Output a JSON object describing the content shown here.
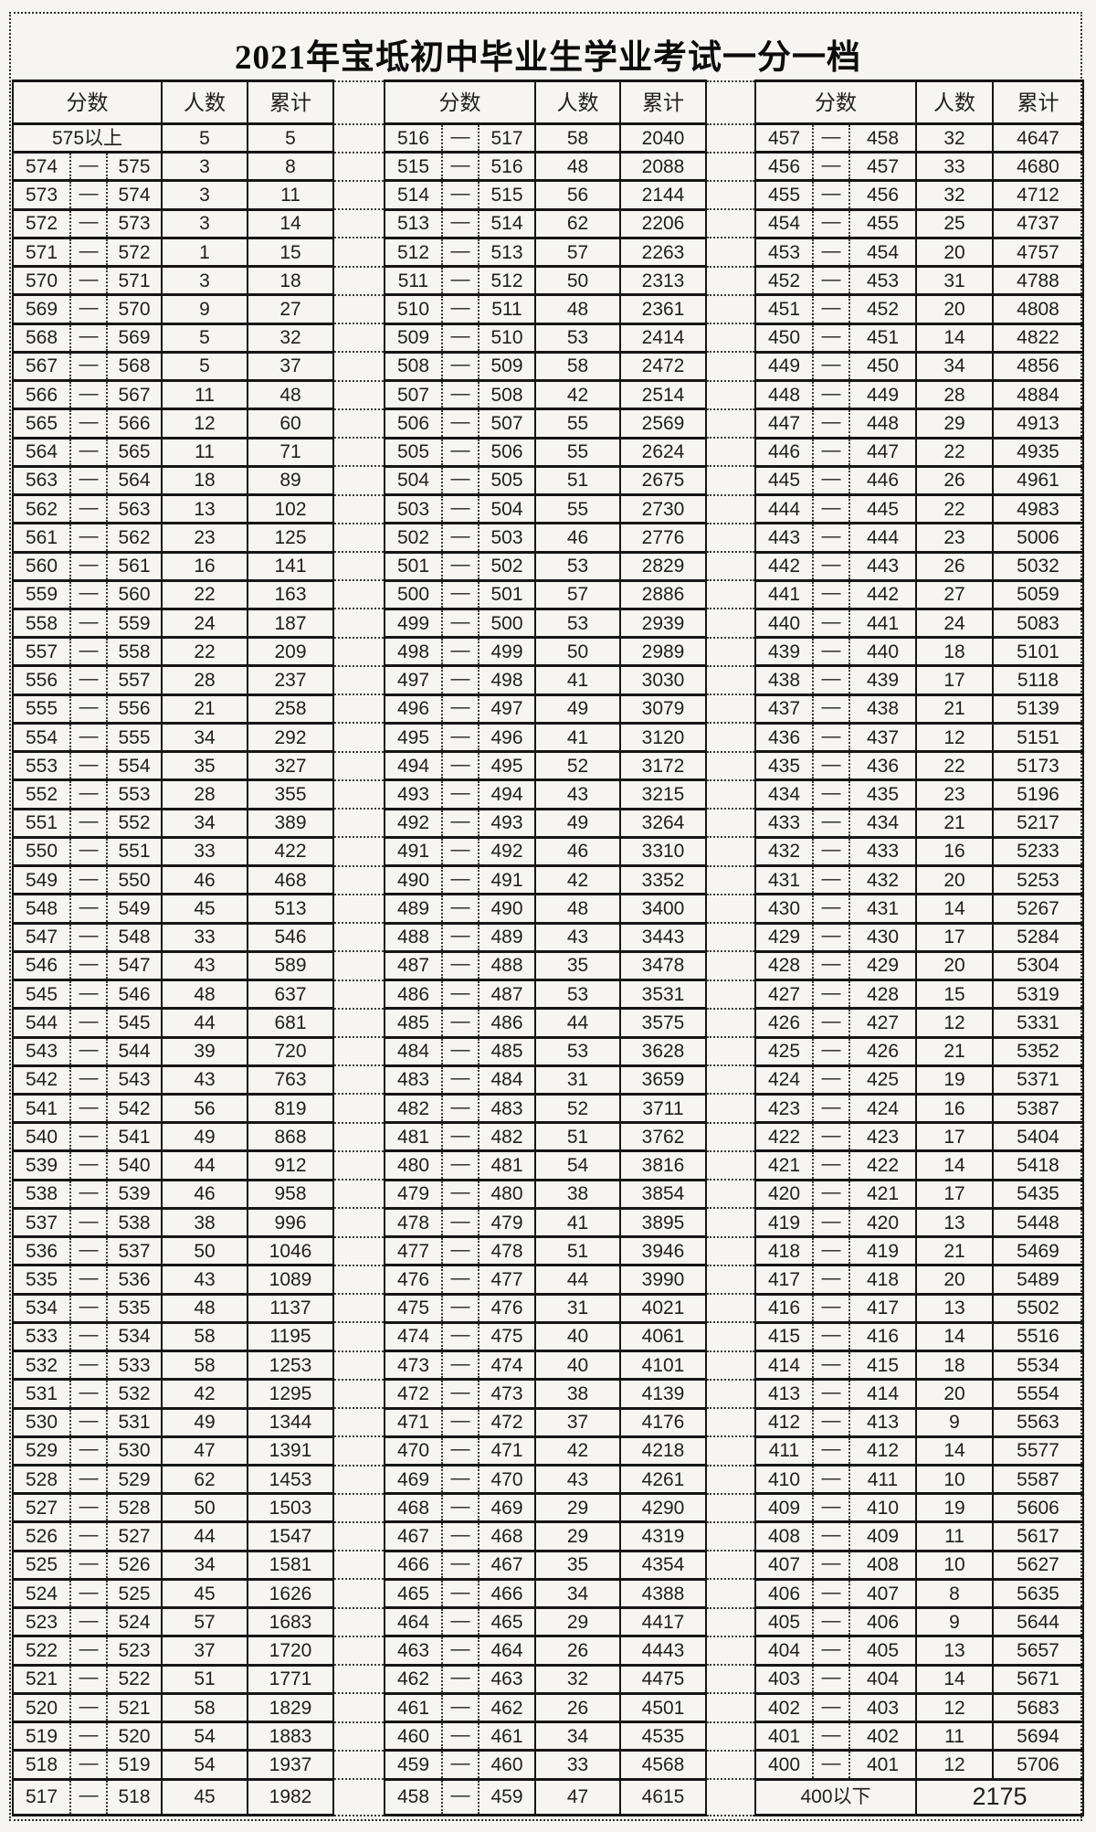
{
  "title": "2021年宝坻初中毕业生学业考试一分一档",
  "headers": {
    "score": "分数",
    "count": "人数",
    "cumulative": "累计"
  },
  "dash": "—",
  "special_rows": {
    "top": {
      "label": "575以上",
      "count": "5",
      "cumulative": "5"
    },
    "bottom": {
      "label": "400以下",
      "count": "2175"
    }
  },
  "groups": [
    {
      "rows": [
        [
          574,
          575,
          3,
          8
        ],
        [
          573,
          574,
          3,
          11
        ],
        [
          572,
          573,
          3,
          14
        ],
        [
          571,
          572,
          1,
          15
        ],
        [
          570,
          571,
          3,
          18
        ],
        [
          569,
          570,
          9,
          27
        ],
        [
          568,
          569,
          5,
          32
        ],
        [
          567,
          568,
          5,
          37
        ],
        [
          566,
          567,
          11,
          48
        ],
        [
          565,
          566,
          12,
          60
        ],
        [
          564,
          565,
          11,
          71
        ],
        [
          563,
          564,
          18,
          89
        ],
        [
          562,
          563,
          13,
          102
        ],
        [
          561,
          562,
          23,
          125
        ],
        [
          560,
          561,
          16,
          141
        ],
        [
          559,
          560,
          22,
          163
        ],
        [
          558,
          559,
          24,
          187
        ],
        [
          557,
          558,
          22,
          209
        ],
        [
          556,
          557,
          28,
          237
        ],
        [
          555,
          556,
          21,
          258
        ],
        [
          554,
          555,
          34,
          292
        ],
        [
          553,
          554,
          35,
          327
        ],
        [
          552,
          553,
          28,
          355
        ],
        [
          551,
          552,
          34,
          389
        ],
        [
          550,
          551,
          33,
          422
        ],
        [
          549,
          550,
          46,
          468
        ],
        [
          548,
          549,
          45,
          513
        ],
        [
          547,
          548,
          33,
          546
        ],
        [
          546,
          547,
          43,
          589
        ],
        [
          545,
          546,
          48,
          637
        ],
        [
          544,
          545,
          44,
          681
        ],
        [
          543,
          544,
          39,
          720
        ],
        [
          542,
          543,
          43,
          763
        ],
        [
          541,
          542,
          56,
          819
        ],
        [
          540,
          541,
          49,
          868
        ],
        [
          539,
          540,
          44,
          912
        ],
        [
          538,
          539,
          46,
          958
        ],
        [
          537,
          538,
          38,
          996
        ],
        [
          536,
          537,
          50,
          1046
        ],
        [
          535,
          536,
          43,
          1089
        ],
        [
          534,
          535,
          48,
          1137
        ],
        [
          533,
          534,
          58,
          1195
        ],
        [
          532,
          533,
          58,
          1253
        ],
        [
          531,
          532,
          42,
          1295
        ],
        [
          530,
          531,
          49,
          1344
        ],
        [
          529,
          530,
          47,
          1391
        ],
        [
          528,
          529,
          62,
          1453
        ],
        [
          527,
          528,
          50,
          1503
        ],
        [
          526,
          527,
          44,
          1547
        ],
        [
          525,
          526,
          34,
          1581
        ],
        [
          524,
          525,
          45,
          1626
        ],
        [
          523,
          524,
          57,
          1683
        ],
        [
          522,
          523,
          37,
          1720
        ],
        [
          521,
          522,
          51,
          1771
        ],
        [
          520,
          521,
          58,
          1829
        ],
        [
          519,
          520,
          54,
          1883
        ],
        [
          518,
          519,
          54,
          1937
        ],
        [
          517,
          518,
          45,
          1982
        ]
      ]
    },
    {
      "rows": [
        [
          516,
          517,
          58,
          2040
        ],
        [
          515,
          516,
          48,
          2088
        ],
        [
          514,
          515,
          56,
          2144
        ],
        [
          513,
          514,
          62,
          2206
        ],
        [
          512,
          513,
          57,
          2263
        ],
        [
          511,
          512,
          50,
          2313
        ],
        [
          510,
          511,
          48,
          2361
        ],
        [
          509,
          510,
          53,
          2414
        ],
        [
          508,
          509,
          58,
          2472
        ],
        [
          507,
          508,
          42,
          2514
        ],
        [
          506,
          507,
          55,
          2569
        ],
        [
          505,
          506,
          55,
          2624
        ],
        [
          504,
          505,
          51,
          2675
        ],
        [
          503,
          504,
          55,
          2730
        ],
        [
          502,
          503,
          46,
          2776
        ],
        [
          501,
          502,
          53,
          2829
        ],
        [
          500,
          501,
          57,
          2886
        ],
        [
          499,
          500,
          53,
          2939
        ],
        [
          498,
          499,
          50,
          2989
        ],
        [
          497,
          498,
          41,
          3030
        ],
        [
          496,
          497,
          49,
          3079
        ],
        [
          495,
          496,
          41,
          3120
        ],
        [
          494,
          495,
          52,
          3172
        ],
        [
          493,
          494,
          43,
          3215
        ],
        [
          492,
          493,
          49,
          3264
        ],
        [
          491,
          492,
          46,
          3310
        ],
        [
          490,
          491,
          42,
          3352
        ],
        [
          489,
          490,
          48,
          3400
        ],
        [
          488,
          489,
          43,
          3443
        ],
        [
          487,
          488,
          35,
          3478
        ],
        [
          486,
          487,
          53,
          3531
        ],
        [
          485,
          486,
          44,
          3575
        ],
        [
          484,
          485,
          53,
          3628
        ],
        [
          483,
          484,
          31,
          3659
        ],
        [
          482,
          483,
          52,
          3711
        ],
        [
          481,
          482,
          51,
          3762
        ],
        [
          480,
          481,
          54,
          3816
        ],
        [
          479,
          480,
          38,
          3854
        ],
        [
          478,
          479,
          41,
          3895
        ],
        [
          477,
          478,
          51,
          3946
        ],
        [
          476,
          477,
          44,
          3990
        ],
        [
          475,
          476,
          31,
          4021
        ],
        [
          474,
          475,
          40,
          4061
        ],
        [
          473,
          474,
          40,
          4101
        ],
        [
          472,
          473,
          38,
          4139
        ],
        [
          471,
          472,
          37,
          4176
        ],
        [
          470,
          471,
          42,
          4218
        ],
        [
          469,
          470,
          43,
          4261
        ],
        [
          468,
          469,
          29,
          4290
        ],
        [
          467,
          468,
          29,
          4319
        ],
        [
          466,
          467,
          35,
          4354
        ],
        [
          465,
          466,
          34,
          4388
        ],
        [
          464,
          465,
          29,
          4417
        ],
        [
          463,
          464,
          26,
          4443
        ],
        [
          462,
          463,
          32,
          4475
        ],
        [
          461,
          462,
          26,
          4501
        ],
        [
          460,
          461,
          34,
          4535
        ],
        [
          459,
          460,
          33,
          4568
        ],
        [
          458,
          459,
          47,
          4615
        ]
      ]
    },
    {
      "rows": [
        [
          457,
          458,
          32,
          4647
        ],
        [
          456,
          457,
          33,
          4680
        ],
        [
          455,
          456,
          32,
          4712
        ],
        [
          454,
          455,
          25,
          4737
        ],
        [
          453,
          454,
          20,
          4757
        ],
        [
          452,
          453,
          31,
          4788
        ],
        [
          451,
          452,
          20,
          4808
        ],
        [
          450,
          451,
          14,
          4822
        ],
        [
          449,
          450,
          34,
          4856
        ],
        [
          448,
          449,
          28,
          4884
        ],
        [
          447,
          448,
          29,
          4913
        ],
        [
          446,
          447,
          22,
          4935
        ],
        [
          445,
          446,
          26,
          4961
        ],
        [
          444,
          445,
          22,
          4983
        ],
        [
          443,
          444,
          23,
          5006
        ],
        [
          442,
          443,
          26,
          5032
        ],
        [
          441,
          442,
          27,
          5059
        ],
        [
          440,
          441,
          24,
          5083
        ],
        [
          439,
          440,
          18,
          5101
        ],
        [
          438,
          439,
          17,
          5118
        ],
        [
          437,
          438,
          21,
          5139
        ],
        [
          436,
          437,
          12,
          5151
        ],
        [
          435,
          436,
          22,
          5173
        ],
        [
          434,
          435,
          23,
          5196
        ],
        [
          433,
          434,
          21,
          5217
        ],
        [
          432,
          433,
          16,
          5233
        ],
        [
          431,
          432,
          20,
          5253
        ],
        [
          430,
          431,
          14,
          5267
        ],
        [
          429,
          430,
          17,
          5284
        ],
        [
          428,
          429,
          20,
          5304
        ],
        [
          427,
          428,
          15,
          5319
        ],
        [
          426,
          427,
          12,
          5331
        ],
        [
          425,
          426,
          21,
          5352
        ],
        [
          424,
          425,
          19,
          5371
        ],
        [
          423,
          424,
          16,
          5387
        ],
        [
          422,
          423,
          17,
          5404
        ],
        [
          421,
          422,
          14,
          5418
        ],
        [
          420,
          421,
          17,
          5435
        ],
        [
          419,
          420,
          13,
          5448
        ],
        [
          418,
          419,
          21,
          5469
        ],
        [
          417,
          418,
          20,
          5489
        ],
        [
          416,
          417,
          13,
          5502
        ],
        [
          415,
          416,
          14,
          5516
        ],
        [
          414,
          415,
          18,
          5534
        ],
        [
          413,
          414,
          20,
          5554
        ],
        [
          412,
          413,
          9,
          5563
        ],
        [
          411,
          412,
          14,
          5577
        ],
        [
          410,
          411,
          10,
          5587
        ],
        [
          409,
          410,
          19,
          5606
        ],
        [
          408,
          409,
          11,
          5617
        ],
        [
          407,
          408,
          10,
          5627
        ],
        [
          406,
          407,
          8,
          5635
        ],
        [
          405,
          406,
          9,
          5644
        ],
        [
          404,
          405,
          13,
          5657
        ],
        [
          403,
          404,
          14,
          5671
        ],
        [
          402,
          403,
          12,
          5683
        ],
        [
          401,
          402,
          11,
          5694
        ],
        [
          400,
          401,
          12,
          5706
        ]
      ]
    }
  ]
}
